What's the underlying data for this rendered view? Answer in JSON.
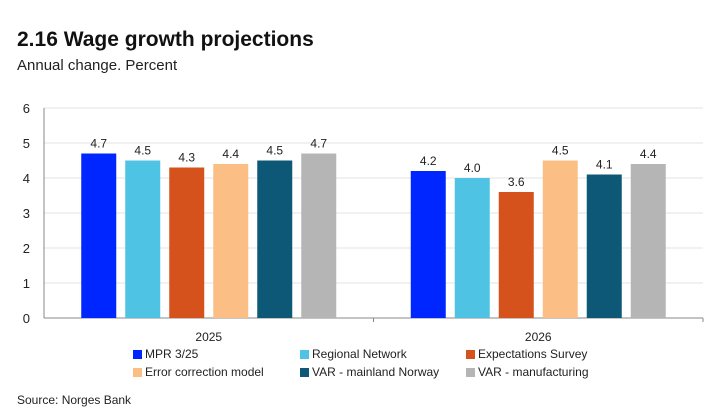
{
  "title": "2.16 Wage growth projections",
  "subtitle": "Annual change. Percent",
  "source": "Source: Norges Bank",
  "chart_data": {
    "type": "bar",
    "categories": [
      "2025",
      "2026"
    ],
    "ylim": [
      0,
      6
    ],
    "yticks": [
      0,
      1,
      2,
      3,
      4,
      5,
      6
    ],
    "grid": true,
    "legend_position": "bottom",
    "series": [
      {
        "name": "MPR 3/25",
        "color": "#0026FF",
        "values": [
          4.7,
          4.2
        ],
        "labels": [
          "4.7",
          "4.2"
        ]
      },
      {
        "name": "Regional Network",
        "color": "#4FC3E3",
        "values": [
          4.5,
          4.0
        ],
        "labels": [
          "4.5",
          "4.0"
        ]
      },
      {
        "name": "Expectations Survey",
        "color": "#D6521C",
        "values": [
          4.3,
          3.6
        ],
        "labels": [
          "4.3",
          "3.6"
        ]
      },
      {
        "name": "Error correction model",
        "color": "#FBBF85",
        "values": [
          4.4,
          4.5
        ],
        "labels": [
          "4.4",
          "4.5"
        ]
      },
      {
        "name": "VAR - mainland Norway",
        "color": "#0D5876",
        "values": [
          4.5,
          4.1
        ],
        "labels": [
          "4.5",
          "4.1"
        ]
      },
      {
        "name": "VAR - manufacturing",
        "color": "#B5B5B5",
        "values": [
          4.7,
          4.4
        ],
        "labels": [
          "4.7",
          "4.4"
        ]
      }
    ]
  }
}
